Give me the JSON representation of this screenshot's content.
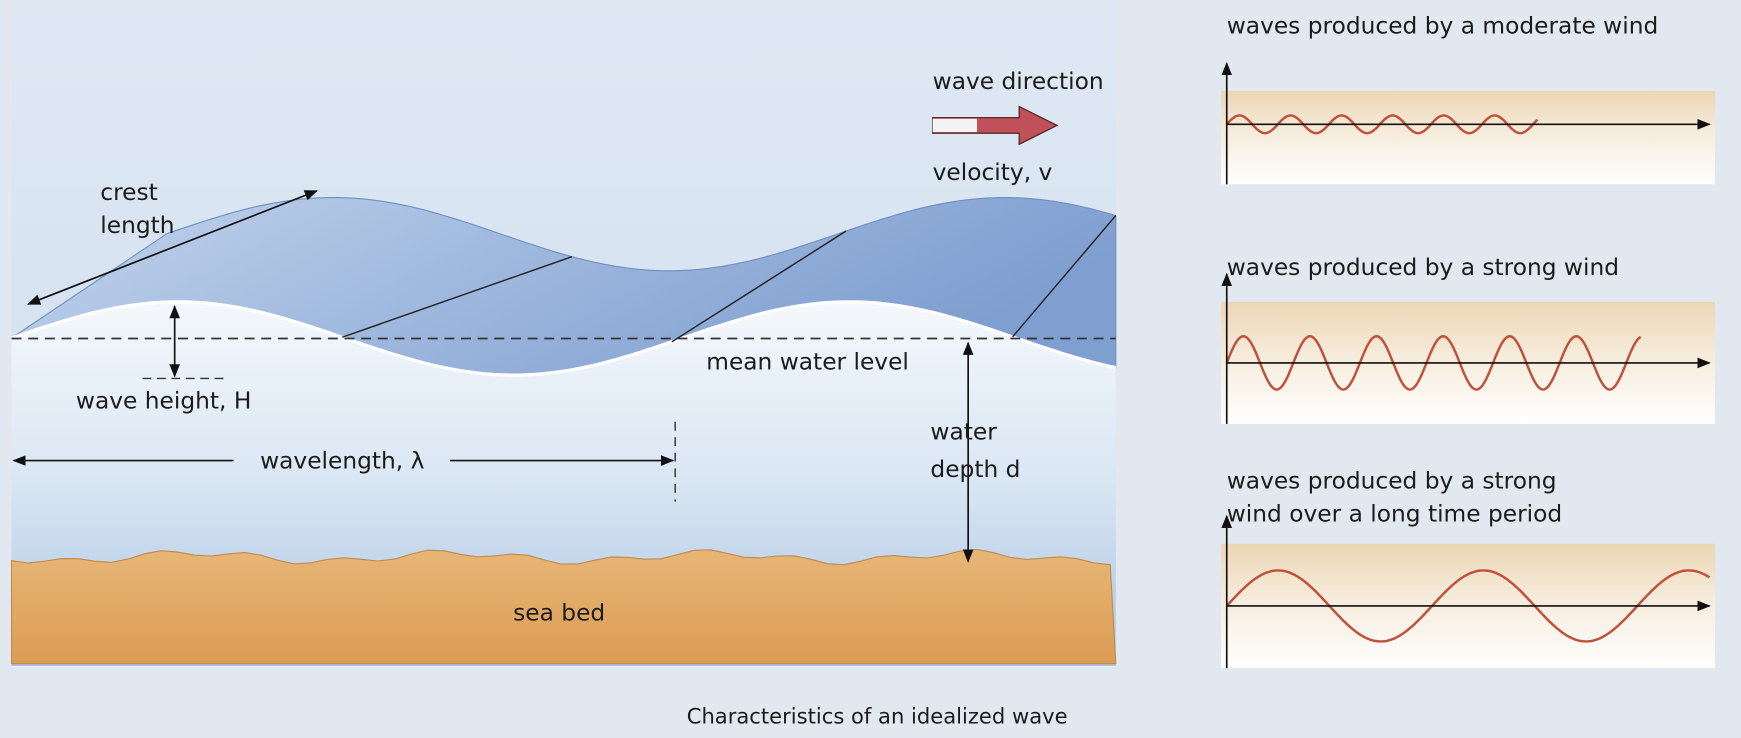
{
  "diagram": {
    "caption": "Characteristics of an idealized wave",
    "labels": {
      "crest_length": [
        "crest",
        "length"
      ],
      "wave_height": "wave height, H",
      "wavelength": "wavelength, λ",
      "wave_direction": "wave direction",
      "velocity": "velocity, v",
      "mean_water_level": "mean water level",
      "water_depth": [
        "water",
        "depth d"
      ],
      "sea_bed": "sea bed"
    },
    "panels": [
      {
        "title_lines": [
          "waves produced by a moderate wind"
        ]
      },
      {
        "title_lines": [
          "waves produced by a strong wind"
        ]
      },
      {
        "title_lines": [
          "waves produced by a strong",
          "wind over a long time period"
        ]
      }
    ]
  }
}
